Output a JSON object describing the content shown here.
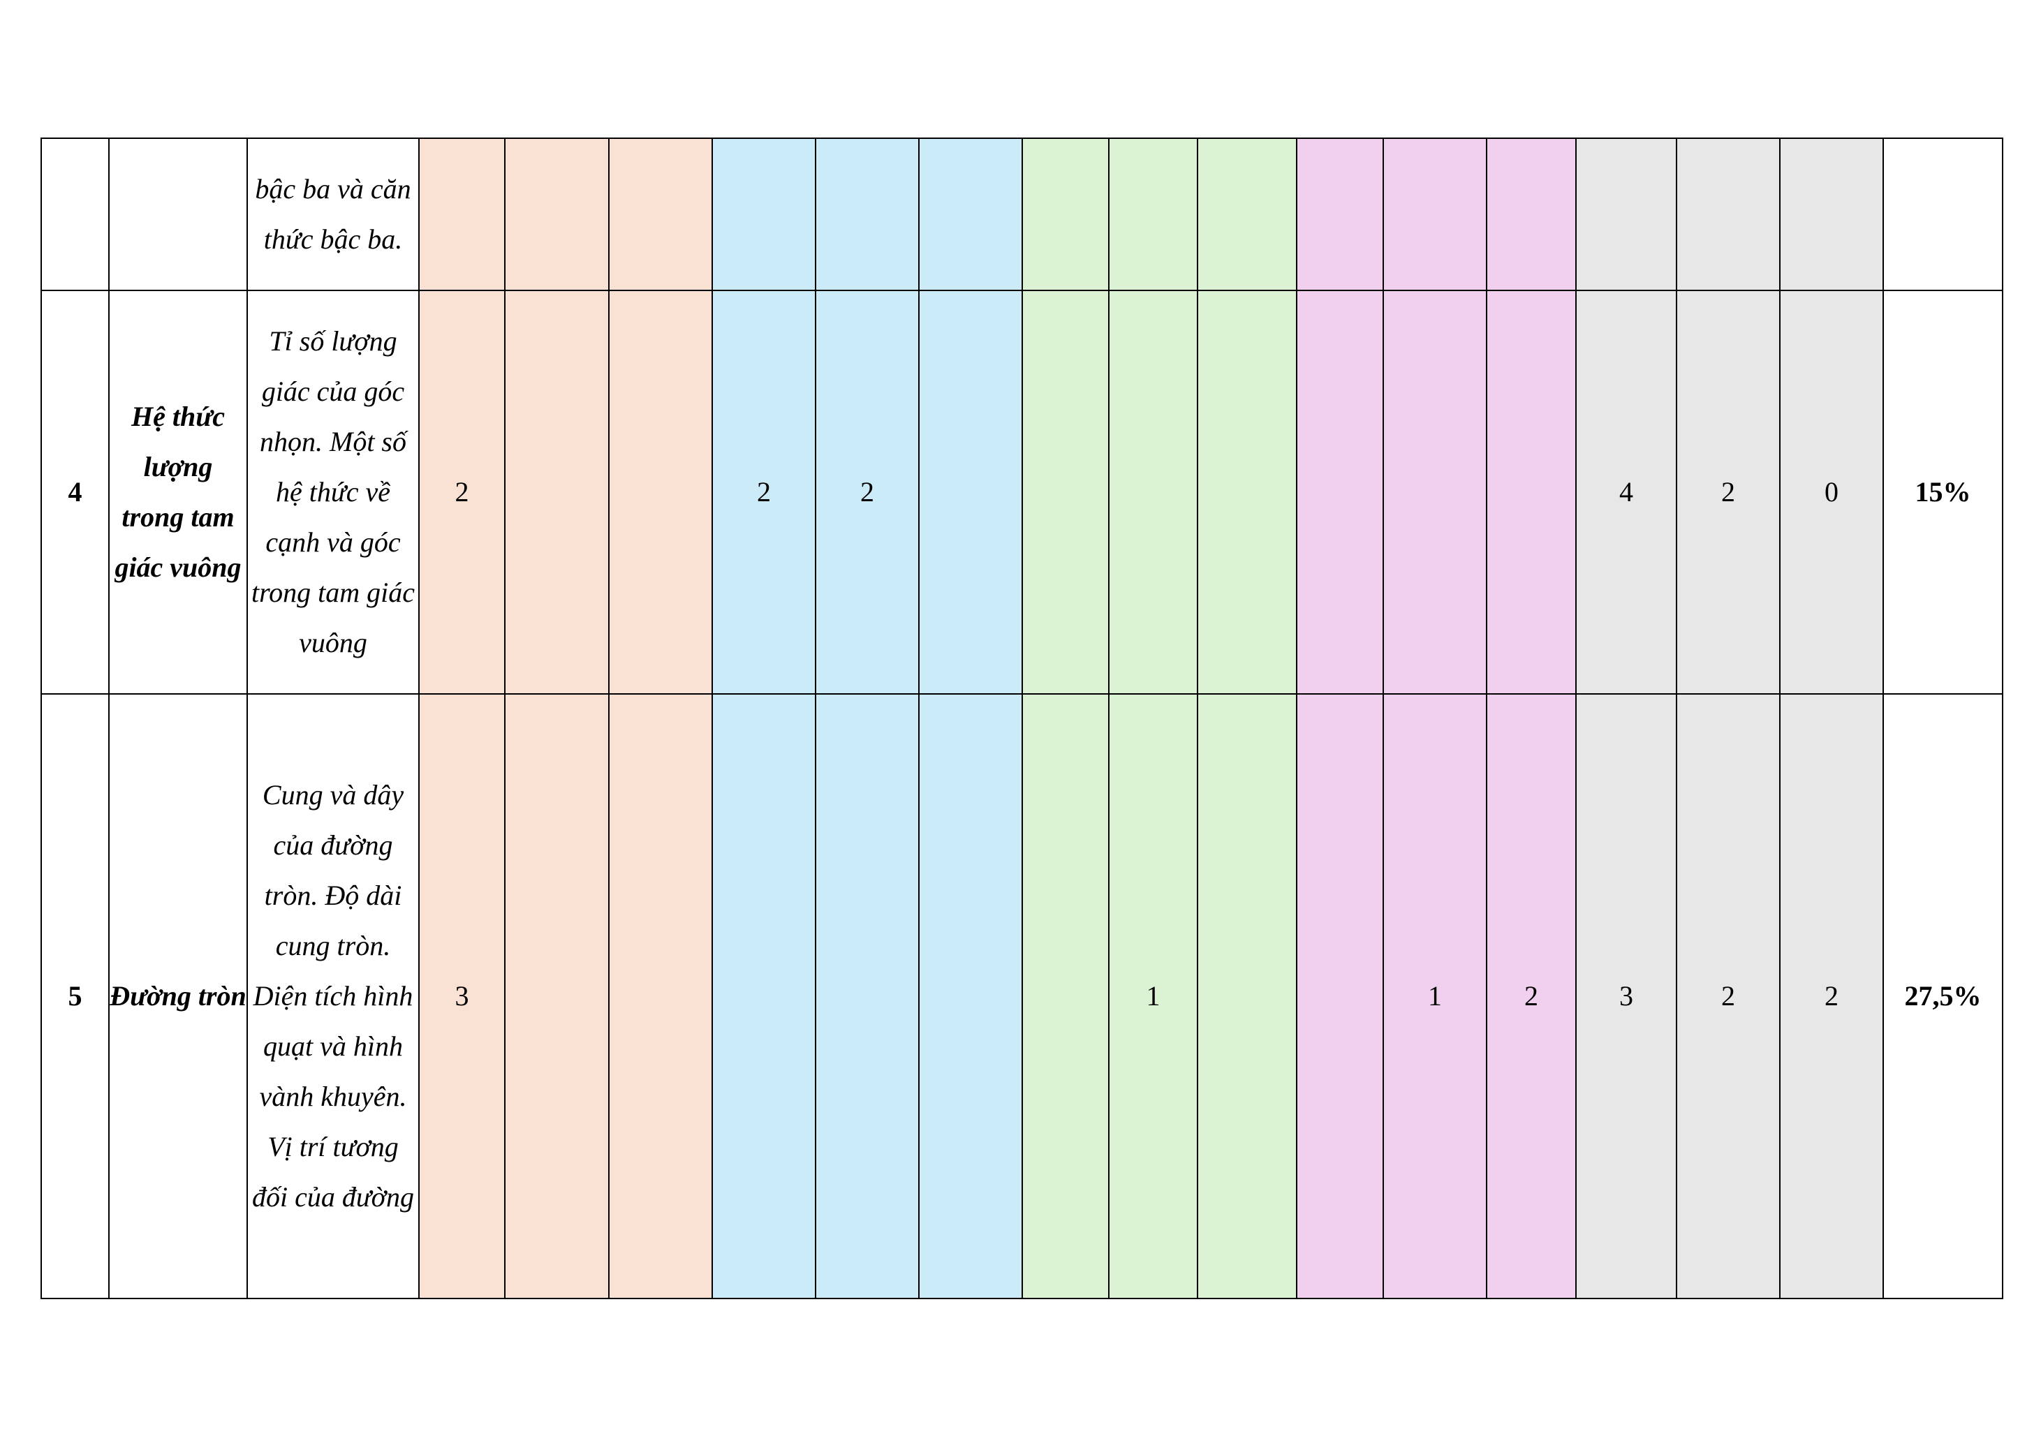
{
  "colors": {
    "group_1": "#f9e1d4",
    "group_2": "#cbebf9",
    "group_3": "#dbf3d2",
    "group_4": "#f0d0ee",
    "group_5": "#e7e7e7"
  },
  "rows": [
    {
      "stt": "",
      "topic": "",
      "content": "bậc ba và căn thức bậc ba.",
      "cells": [
        "",
        "",
        "",
        "",
        "",
        "",
        "",
        "",
        "",
        "",
        "",
        "",
        "",
        "",
        ""
      ],
      "percent": ""
    },
    {
      "stt": "4",
      "topic": "Hệ thức lượng trong tam giác vuông",
      "content": "Tỉ số lượng giác của góc nhọn. Một số hệ thức về cạnh và góc trong tam giác vuông",
      "cells": [
        "2",
        "",
        "",
        "2",
        "2",
        "",
        "",
        "",
        "",
        "",
        "",
        "",
        "4",
        "2",
        "0"
      ],
      "percent": "15%"
    },
    {
      "stt": "5",
      "topic": "Đường tròn",
      "content": "Cung và dây của đường tròn. Độ dài cung tròn. Diện tích hình quạt và hình vành khuyên. Vị trí tương đối của đường",
      "cells": [
        "3",
        "",
        "",
        "",
        "",
        "",
        "",
        "1",
        "",
        "",
        "1",
        "2",
        "3",
        "2",
        "2"
      ],
      "percent": "27,5%"
    }
  ]
}
